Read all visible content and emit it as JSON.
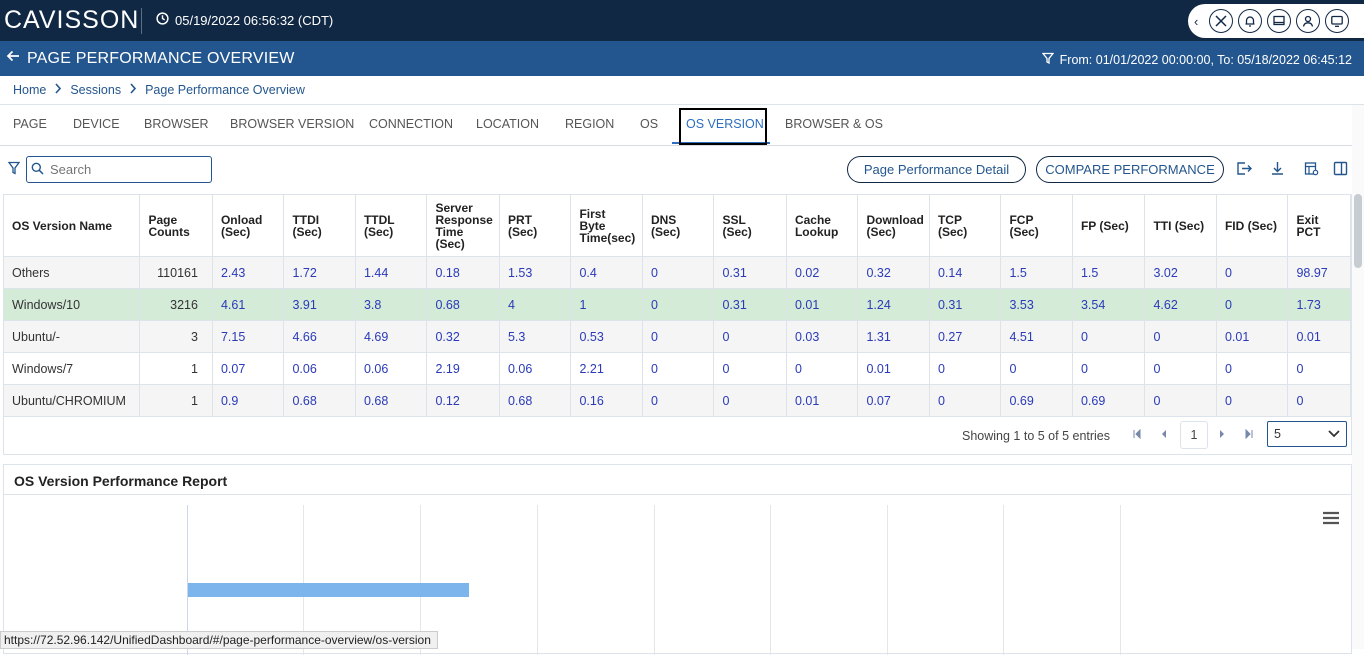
{
  "topbar": {
    "logo": "CAVISSON",
    "datetime": "05/19/2022 06:56:32 (CDT)"
  },
  "titlebar": {
    "title": "PAGE PERFORMANCE OVERVIEW",
    "filter": "From: 01/01/2022 00:00:00, To: 05/18/2022 06:45:12"
  },
  "breadcrumb": [
    "Home",
    "Sessions",
    "Page Performance Overview"
  ],
  "tabs": [
    "PAGE",
    "DEVICE",
    "BROWSER",
    "BROWSER VERSION",
    "CONNECTION",
    "LOCATION",
    "REGION",
    "OS",
    "OS VERSION",
    "BROWSER & OS"
  ],
  "active_tab": "OS VERSION",
  "toolbar": {
    "search_placeholder": "Search",
    "detail_button": "Page Performance Detail",
    "compare_button": "COMPARE PERFORMANCE"
  },
  "table": {
    "headers": [
      "OS Version Name",
      "Page Counts",
      "Onload (Sec)",
      "TTDI (Sec)",
      "TTDL (Sec)",
      "Server Response Time (Sec)",
      "PRT (Sec)",
      "First Byte Time(sec)",
      "DNS (Sec)",
      "SSL (Sec)",
      "Cache Lookup",
      "Download (Sec)",
      "TCP (Sec)",
      "FCP (Sec)",
      "FP (Sec)",
      "TTI (Sec)",
      "FID (Sec)",
      "Exit PCT"
    ],
    "rows": [
      [
        "Others",
        "110161",
        "2.43",
        "1.72",
        "1.44",
        "0.18",
        "1.53",
        "0.4",
        "0",
        "0.31",
        "0.02",
        "0.32",
        "0.14",
        "1.5",
        "1.5",
        "3.02",
        "0",
        "98.97"
      ],
      [
        "Windows/10",
        "3216",
        "4.61",
        "3.91",
        "3.8",
        "0.68",
        "4",
        "1",
        "0",
        "0.31",
        "0.01",
        "1.24",
        "0.31",
        "3.53",
        "3.54",
        "4.62",
        "0",
        "1.73"
      ],
      [
        "Ubuntu/-",
        "3",
        "7.15",
        "4.66",
        "4.69",
        "0.32",
        "5.3",
        "0.53",
        "0",
        "0",
        "0.03",
        "1.31",
        "0.27",
        "4.51",
        "0",
        "0",
        "0.01",
        "0.01"
      ],
      [
        "Windows/7",
        "1",
        "0.07",
        "0.06",
        "0.06",
        "2.19",
        "0.06",
        "2.21",
        "0",
        "0",
        "0",
        "0.01",
        "0",
        "0",
        "0",
        "0",
        "0",
        "0"
      ],
      [
        "Ubuntu/CHROMIUM",
        "1",
        "0.9",
        "0.68",
        "0.68",
        "0.12",
        "0.68",
        "0.16",
        "0",
        "0",
        "0.01",
        "0.07",
        "0",
        "0.69",
        "0.69",
        "0",
        "0",
        "0"
      ]
    ],
    "highlighted_row": 1
  },
  "pager": {
    "info": "Showing 1 to 5 of 5 entries",
    "page": "1",
    "page_size": "5"
  },
  "report": {
    "title": "OS Version Performance Report"
  },
  "status_url": "https://72.52.96.142/UnifiedDashboard/#/page-performance-overview/os-version",
  "colors": {
    "topbar": "#112845",
    "titlebar": "#23568e",
    "link": "#2a3ab8",
    "highlight_row": "#d4ebd8",
    "bar": "#7cb5ec"
  }
}
